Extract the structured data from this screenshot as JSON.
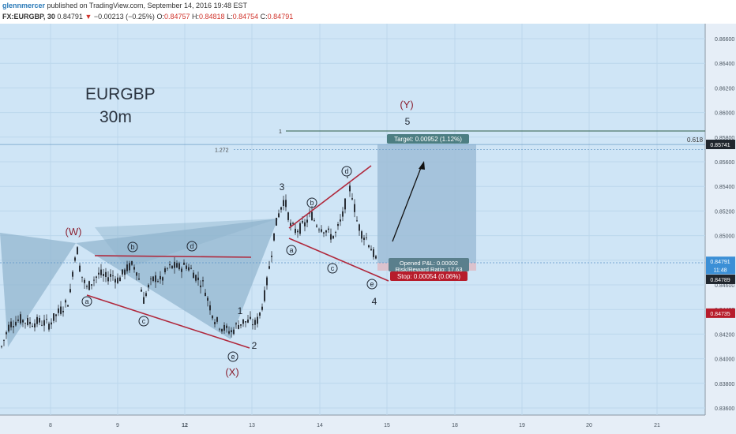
{
  "header": {
    "author": "glennmercer",
    "published": "published on TradingView.com, September 14, 2016 19:48 EST",
    "symbol": "FX:EURGBP, 30",
    "last": "0.84791",
    "change_arrow": "▼",
    "change": "−0.00213 (−0.25%)",
    "o_label": "O:",
    "o": "0.84757",
    "h_label": "H:",
    "h": "0.84818",
    "l_label": "L:",
    "l": "0.84754",
    "c_label": "C:",
    "c": "0.84791"
  },
  "chart_title": {
    "line1": "EURGBP",
    "line2": "30m"
  },
  "colors": {
    "background": "#cfe5f6",
    "candle": "#2a2f36",
    "trendline": "#b0283c",
    "pattern_fill": "#8fb3cd",
    "target_box": "#9dbdd7",
    "stop_box": "#dcc2cd",
    "target_label_bg": "#4c7e82",
    "stop_label_bg": "#b71c2b",
    "axis_bg": "#e6eef7"
  },
  "chart_data": {
    "type": "candlestick",
    "y_axis": {
      "ticks": [
        "0.86600",
        "0.86400",
        "0.86200",
        "0.86000",
        "0.85800",
        "0.85600",
        "0.85400",
        "0.85200",
        "0.85000",
        "0.84800",
        "0.84600",
        "0.84400",
        "0.84200",
        "0.84000",
        "0.83800",
        "0.83600"
      ],
      "tick_values": [
        0.866,
        0.864,
        0.862,
        0.86,
        0.858,
        0.856,
        0.854,
        0.852,
        0.85,
        0.848,
        0.846,
        0.844,
        0.842,
        0.84,
        0.838,
        0.836
      ],
      "range": [
        0.8355,
        0.8678
      ]
    },
    "x_axis": {
      "labels": [
        "8",
        "9",
        "12",
        "13",
        "14",
        "15",
        "18",
        "19",
        "20",
        "21"
      ],
      "bold_labels": [
        "12"
      ]
    },
    "price_path": [
      [
        0,
        0.8406
      ],
      [
        12,
        0.8428
      ],
      [
        25,
        0.8432
      ],
      [
        38,
        0.8429
      ],
      [
        50,
        0.843
      ],
      [
        62,
        0.8428
      ],
      [
        72,
        0.8436
      ],
      [
        80,
        0.8442
      ],
      [
        88,
        0.8448
      ],
      [
        94,
        0.8482
      ],
      [
        98,
        0.8488
      ],
      [
        102,
        0.847
      ],
      [
        110,
        0.8457
      ],
      [
        118,
        0.8464
      ],
      [
        126,
        0.8469
      ],
      [
        134,
        0.8466
      ],
      [
        142,
        0.8468
      ],
      [
        150,
        0.8464
      ],
      [
        158,
        0.8471
      ],
      [
        166,
        0.8476
      ],
      [
        172,
        0.8474
      ],
      [
        178,
        0.846
      ],
      [
        182,
        0.8448
      ],
      [
        188,
        0.8458
      ],
      [
        196,
        0.8466
      ],
      [
        204,
        0.8463
      ],
      [
        212,
        0.8473
      ],
      [
        220,
        0.8475
      ],
      [
        228,
        0.8474
      ],
      [
        236,
        0.8476
      ],
      [
        244,
        0.8471
      ],
      [
        250,
        0.8465
      ],
      [
        258,
        0.846
      ],
      [
        264,
        0.8446
      ],
      [
        272,
        0.8432
      ],
      [
        280,
        0.8426
      ],
      [
        288,
        0.8423
      ],
      [
        294,
        0.8422
      ],
      [
        300,
        0.8427
      ],
      [
        308,
        0.843
      ],
      [
        316,
        0.843
      ],
      [
        324,
        0.8428
      ],
      [
        330,
        0.8438
      ],
      [
        336,
        0.8454
      ],
      [
        342,
        0.8478
      ],
      [
        348,
        0.8505
      ],
      [
        354,
        0.852
      ],
      [
        360,
        0.853
      ],
      [
        364,
        0.852
      ],
      [
        368,
        0.8508
      ],
      [
        374,
        0.8504
      ],
      [
        380,
        0.8506
      ],
      [
        386,
        0.8509
      ],
      [
        394,
        0.8518
      ],
      [
        400,
        0.851
      ],
      [
        406,
        0.8507
      ],
      [
        412,
        0.8505
      ],
      [
        418,
        0.85
      ],
      [
        424,
        0.85
      ],
      [
        430,
        0.8509
      ],
      [
        436,
        0.852
      ],
      [
        440,
        0.8543
      ],
      [
        446,
        0.8533
      ],
      [
        452,
        0.8512
      ],
      [
        458,
        0.8502
      ],
      [
        464,
        0.8498
      ],
      [
        470,
        0.849
      ],
      [
        476,
        0.848
      ],
      [
        478,
        0.8479
      ]
    ],
    "last_price": 0.84791,
    "axis_badges": [
      {
        "label": "0.85741",
        "value": 0.85741,
        "color": "#20262e"
      },
      {
        "label": "0.84791",
        "value": 0.84791,
        "color": "#3b8fd6"
      },
      {
        "label": "11:48",
        "value": 0.84725,
        "color": "#3b8fd6"
      },
      {
        "label": "0.84789",
        "value": 0.84645,
        "color": "#20262e"
      },
      {
        "label": "0.84735",
        "value": 0.8437,
        "color": "#b71c2b"
      }
    ],
    "fib_levels": [
      {
        "label_left": "1",
        "label_right": "",
        "value": 0.8585
      },
      {
        "label_left": "1.272",
        "label_right": "",
        "value": 0.857
      },
      {
        "label_left": "",
        "label_right": "0.618",
        "value": 0.85766
      }
    ],
    "wave_labels": {
      "abcde": [
        "a",
        "b",
        "c",
        "d",
        "e"
      ],
      "W": "(W)",
      "X": "(X)",
      "Y": "(Y)",
      "n1": "1",
      "n2": "2",
      "n3": "3",
      "n4": "4",
      "n5": "5"
    },
    "position": {
      "target": "Target: 0.00952 (1.12%)",
      "pnl": "Opened P&L: 0.00002",
      "rr": "Risk/Reward Ratio: 17.63",
      "stop": "Stop: 0.00054 (0.06%)"
    }
  }
}
